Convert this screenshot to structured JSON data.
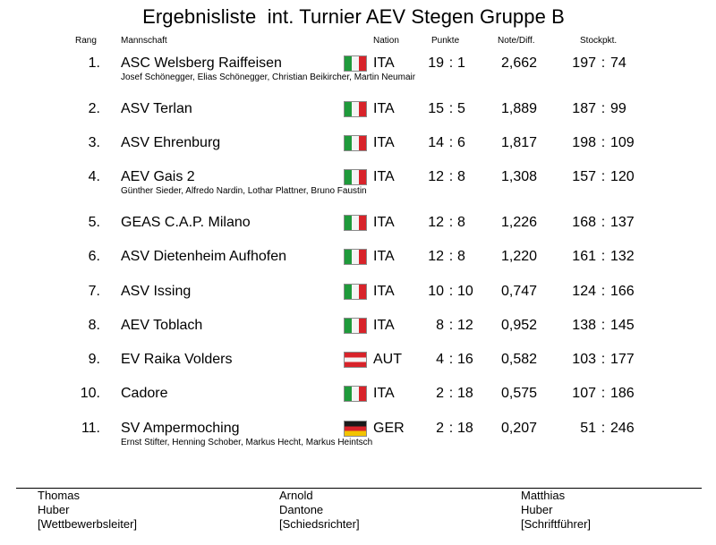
{
  "title": "Ergebnisliste  int. Turnier AEV Stegen Gruppe B",
  "headers": {
    "rank": "Rang",
    "team": "Mannschaft",
    "nation": "Nation",
    "points": "Punkte",
    "diff": "Note/Diff.",
    "stock": "Stockpkt."
  },
  "rows": [
    {
      "rank": "1.",
      "team": "ASC Welsberg Raiffeisen",
      "flag": "flag-italy-icon",
      "nation": "ITA",
      "pts_a": "19",
      "pts_b": "1",
      "diff": "2,662",
      "st_a": "197",
      "st_b": "74",
      "players": "Josef Schönegger, Elias Schönegger, Christian Beikircher, Martin Neumair"
    },
    {
      "rank": "2.",
      "team": "ASV Terlan",
      "flag": "flag-italy-icon",
      "nation": "ITA",
      "pts_a": "15",
      "pts_b": "5",
      "diff": "1,889",
      "st_a": "187",
      "st_b": "99",
      "players": ""
    },
    {
      "rank": "3.",
      "team": "ASV Ehrenburg",
      "flag": "flag-italy-icon",
      "nation": "ITA",
      "pts_a": "14",
      "pts_b": "6",
      "diff": "1,817",
      "st_a": "198",
      "st_b": "109",
      "players": ""
    },
    {
      "rank": "4.",
      "team": "AEV Gais 2",
      "flag": "flag-italy-icon",
      "nation": "ITA",
      "pts_a": "12",
      "pts_b": "8",
      "diff": "1,308",
      "st_a": "157",
      "st_b": "120",
      "players": "Günther Sieder, Alfredo Nardin, Lothar Plattner, Bruno Faustin"
    },
    {
      "rank": "5.",
      "team": "GEAS C.A.P. Milano",
      "flag": "flag-italy-icon",
      "nation": "ITA",
      "pts_a": "12",
      "pts_b": "8",
      "diff": "1,226",
      "st_a": "168",
      "st_b": "137",
      "players": ""
    },
    {
      "rank": "6.",
      "team": "ASV Dietenheim Aufhofen",
      "flag": "flag-italy-icon",
      "nation": "ITA",
      "pts_a": "12",
      "pts_b": "8",
      "diff": "1,220",
      "st_a": "161",
      "st_b": "132",
      "players": ""
    },
    {
      "rank": "7.",
      "team": "ASV Issing",
      "flag": "flag-italy-icon",
      "nation": "ITA",
      "pts_a": "10",
      "pts_b": "10",
      "diff": "0,747",
      "st_a": "124",
      "st_b": "166",
      "players": ""
    },
    {
      "rank": "8.",
      "team": "AEV Toblach",
      "flag": "flag-italy-icon",
      "nation": "ITA",
      "pts_a": "8",
      "pts_b": "12",
      "diff": "0,952",
      "st_a": "138",
      "st_b": "145",
      "players": ""
    },
    {
      "rank": "9.",
      "team": "EV Raika Volders",
      "flag": "flag-austria-icon",
      "nation": "AUT",
      "pts_a": "4",
      "pts_b": "16",
      "diff": "0,582",
      "st_a": "103",
      "st_b": "177",
      "players": ""
    },
    {
      "rank": "10.",
      "team": "Cadore",
      "flag": "flag-italy-icon",
      "nation": "ITA",
      "pts_a": "2",
      "pts_b": "18",
      "diff": "0,575",
      "st_a": "107",
      "st_b": "186",
      "players": ""
    },
    {
      "rank": "11.",
      "team": "SV Ampermoching",
      "flag": "flag-germany-icon",
      "nation": "GER",
      "pts_a": "2",
      "pts_b": "18",
      "diff": "0,207",
      "st_a": "51",
      "st_b": "246",
      "players": "Ernst Stifter, Henning Schober, Markus Hecht, Markus Heintsch"
    }
  ],
  "signatures": [
    {
      "first": "Thomas",
      "last": "Huber",
      "role": "[Wettbewerbsleiter]"
    },
    {
      "first": "Arnold",
      "last": "Dantone",
      "role": "[Schiedsrichter]"
    },
    {
      "first": "Matthias",
      "last": "Huber",
      "role": "[Schriftführer]"
    }
  ]
}
